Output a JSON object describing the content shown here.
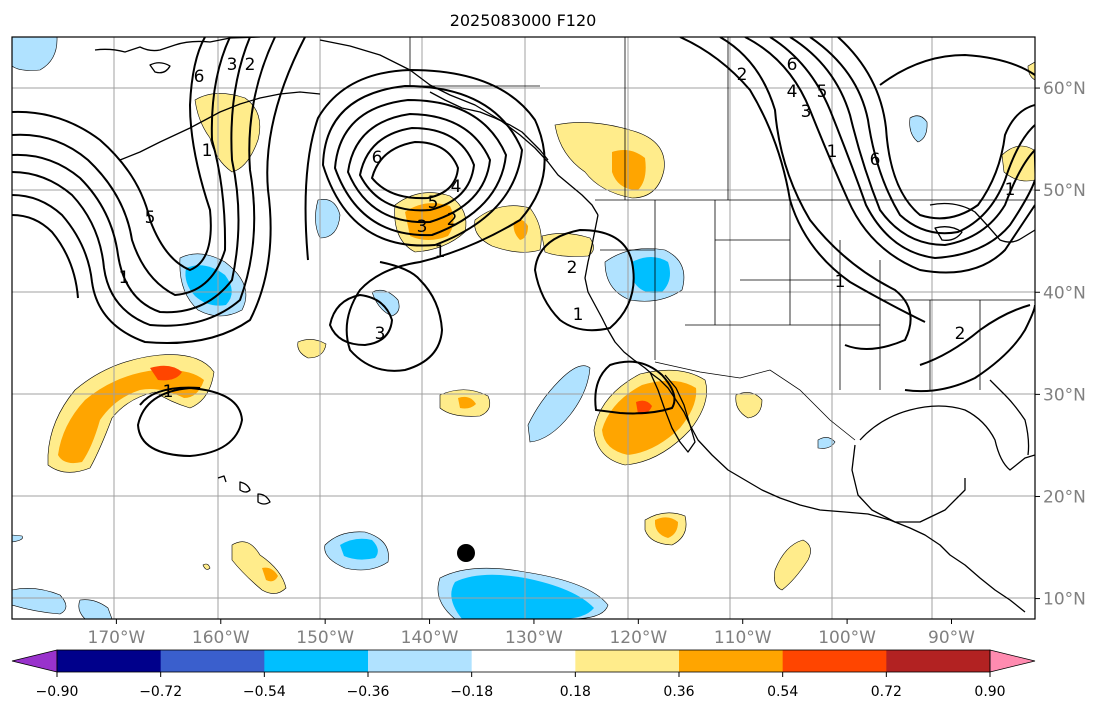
{
  "title": "2025083000 F120",
  "colors": {
    "background": "#ffffff",
    "coast": "#000000",
    "grid": "#a0a0a0",
    "contour": "#000000"
  },
  "map": {
    "lon_range": [
      -180,
      -82
    ],
    "lat_range": [
      8,
      65
    ],
    "x_ticks": [
      {
        "lon": -170,
        "label": "170°W"
      },
      {
        "lon": -160,
        "label": "160°W"
      },
      {
        "lon": -150,
        "label": "150°W"
      },
      {
        "lon": -140,
        "label": "140°W"
      },
      {
        "lon": -130,
        "label": "130°W"
      },
      {
        "lon": -120,
        "label": "120°W"
      },
      {
        "lon": -110,
        "label": "110°W"
      },
      {
        "lon": -100,
        "label": "100°W"
      },
      {
        "lon": -90,
        "label": "90°W"
      }
    ],
    "y_ticks": [
      {
        "lat": 60,
        "label": "60°N"
      },
      {
        "lat": 50,
        "label": "50°N"
      },
      {
        "lat": 40,
        "label": "40°N"
      },
      {
        "lat": 30,
        "label": "30°N"
      },
      {
        "lat": 20,
        "label": "20°N"
      },
      {
        "lat": 10,
        "label": "10°N"
      }
    ],
    "marker": {
      "lon": -135.5,
      "lat": 14.2,
      "icon": "storm-center-dot"
    }
  },
  "colorbar": {
    "levels": [
      "−0.90",
      "−0.72",
      "−0.54",
      "−0.36",
      "−0.18",
      "0.18",
      "0.36",
      "0.54",
      "0.72",
      "0.90"
    ],
    "colors": [
      "#9932cc",
      "#00008b",
      "#3a5fcd",
      "#00bfff",
      "#b0e2ff",
      "#ffffff",
      "#ffec8b",
      "#ffa500",
      "#ff4500",
      "#b22222",
      "#ff8bb0"
    ],
    "extend": "both"
  }
}
